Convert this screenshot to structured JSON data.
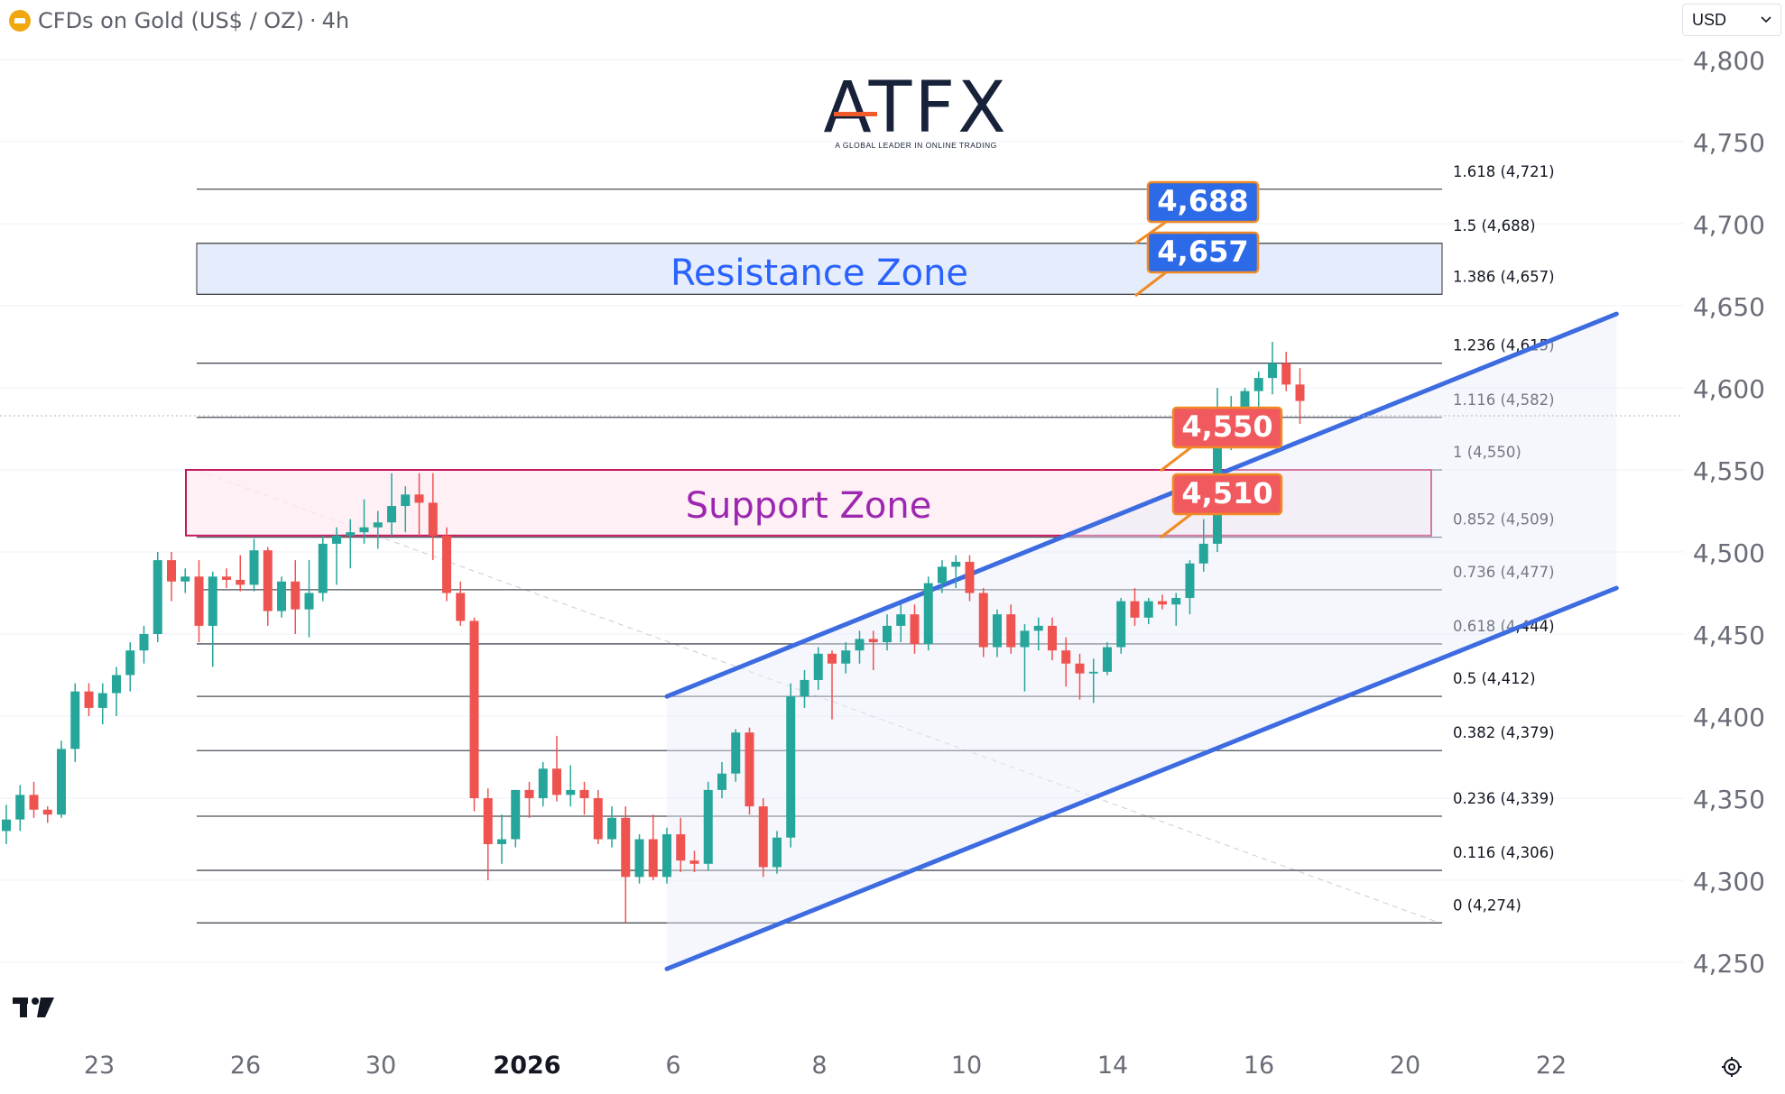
{
  "header": {
    "symbol": "CFDs on Gold (US$ / OZ)",
    "separator": "·",
    "interval": "4h"
  },
  "currency_select": {
    "value": "USD",
    "icon": "chevron-down-icon"
  },
  "logo": {
    "name": "ATFX",
    "tagline": "A GLOBAL LEADER IN ONLINE TRADING"
  },
  "colors": {
    "up": "#26a69a",
    "down": "#ef5350",
    "channel": "#3d6be0",
    "resistance": "#2962ff",
    "support": "#9c27b0",
    "tag_blue": "#2c6ae8",
    "tag_red": "#f05a5e",
    "tag_border": "#f08a24"
  },
  "chart_data": {
    "type": "candlestick",
    "y_axis": {
      "ticks": [
        4800,
        4750,
        4700,
        4650,
        4600,
        4550,
        4500,
        4450,
        4400,
        4350,
        4300,
        4250
      ],
      "ylim": [
        4230,
        4810
      ],
      "current_price_line": 4583
    },
    "x_axis": {
      "ticks": [
        "23",
        "26",
        "30",
        "2026",
        "6",
        "8",
        "10",
        "14",
        "16",
        "20",
        "22"
      ]
    },
    "candles": [
      [
        4330,
        4346,
        4322,
        4337
      ],
      [
        4337,
        4358,
        4330,
        4352
      ],
      [
        4352,
        4360,
        4338,
        4343
      ],
      [
        4343,
        4345,
        4335,
        4340
      ],
      [
        4340,
        4385,
        4338,
        4380
      ],
      [
        4380,
        4420,
        4372,
        4415
      ],
      [
        4415,
        4420,
        4400,
        4405
      ],
      [
        4405,
        4420,
        4395,
        4414
      ],
      [
        4414,
        4430,
        4400,
        4425
      ],
      [
        4425,
        4445,
        4415,
        4440
      ],
      [
        4440,
        4455,
        4432,
        4450
      ],
      [
        4450,
        4500,
        4445,
        4495
      ],
      [
        4495,
        4500,
        4470,
        4482
      ],
      [
        4482,
        4490,
        4475,
        4485
      ],
      [
        4485,
        4495,
        4445,
        4455
      ],
      [
        4455,
        4488,
        4430,
        4485
      ],
      [
        4485,
        4490,
        4478,
        4483
      ],
      [
        4483,
        4498,
        4476,
        4480
      ],
      [
        4480,
        4508,
        4476,
        4501
      ],
      [
        4501,
        4503,
        4455,
        4464
      ],
      [
        4464,
        4485,
        4460,
        4482
      ],
      [
        4482,
        4495,
        4450,
        4465
      ],
      [
        4465,
        4495,
        4448,
        4475
      ],
      [
        4475,
        4510,
        4470,
        4505
      ],
      [
        4505,
        4515,
        4480,
        4510
      ],
      [
        4510,
        4520,
        4490,
        4512
      ],
      [
        4512,
        4532,
        4505,
        4515
      ],
      [
        4515,
        4525,
        4502,
        4518
      ],
      [
        4518,
        4548,
        4510,
        4528
      ],
      [
        4528,
        4540,
        4512,
        4535
      ],
      [
        4535,
        4548,
        4510,
        4530
      ],
      [
        4530,
        4548,
        4495,
        4510
      ],
      [
        4510,
        4515,
        4470,
        4475
      ],
      [
        4475,
        4482,
        4455,
        4458
      ],
      [
        4458,
        4460,
        4342,
        4350
      ],
      [
        4350,
        4356,
        4300,
        4322
      ],
      [
        4322,
        4340,
        4310,
        4325
      ],
      [
        4325,
        4355,
        4320,
        4355
      ],
      [
        4355,
        4360,
        4338,
        4350
      ],
      [
        4350,
        4372,
        4345,
        4368
      ],
      [
        4368,
        4388,
        4348,
        4352
      ],
      [
        4352,
        4370,
        4345,
        4355
      ],
      [
        4355,
        4360,
        4340,
        4350
      ],
      [
        4350,
        4355,
        4322,
        4325
      ],
      [
        4325,
        4345,
        4320,
        4338
      ],
      [
        4338,
        4345,
        4274,
        4302
      ],
      [
        4302,
        4328,
        4298,
        4325
      ],
      [
        4325,
        4340,
        4300,
        4302
      ],
      [
        4302,
        4332,
        4298,
        4328
      ],
      [
        4328,
        4338,
        4305,
        4312
      ],
      [
        4312,
        4318,
        4305,
        4310
      ],
      [
        4310,
        4360,
        4306,
        4355
      ],
      [
        4355,
        4372,
        4350,
        4365
      ],
      [
        4365,
        4392,
        4360,
        4390
      ],
      [
        4390,
        4393,
        4340,
        4345
      ],
      [
        4345,
        4350,
        4302,
        4308
      ],
      [
        4308,
        4330,
        4304,
        4326
      ],
      [
        4326,
        4420,
        4320,
        4412
      ],
      [
        4412,
        4428,
        4405,
        4422
      ],
      [
        4422,
        4442,
        4416,
        4438
      ],
      [
        4438,
        4440,
        4398,
        4432
      ],
      [
        4432,
        4445,
        4426,
        4440
      ],
      [
        4440,
        4452,
        4432,
        4447
      ],
      [
        4447,
        4452,
        4428,
        4445
      ],
      [
        4445,
        4462,
        4440,
        4455
      ],
      [
        4455,
        4468,
        4445,
        4462
      ],
      [
        4462,
        4468,
        4438,
        4444
      ],
      [
        4444,
        4485,
        4440,
        4481
      ],
      [
        4481,
        4495,
        4475,
        4491
      ],
      [
        4491,
        4498,
        4478,
        4494
      ],
      [
        4494,
        4498,
        4470,
        4475
      ],
      [
        4475,
        4478,
        4436,
        4442
      ],
      [
        4442,
        4465,
        4436,
        4462
      ],
      [
        4462,
        4468,
        4438,
        4442
      ],
      [
        4442,
        4456,
        4415,
        4452
      ],
      [
        4452,
        4460,
        4440,
        4455
      ],
      [
        4455,
        4460,
        4434,
        4440
      ],
      [
        4440,
        4448,
        4418,
        4432
      ],
      [
        4432,
        4438,
        4410,
        4426
      ],
      [
        4426,
        4435,
        4408,
        4427
      ],
      [
        4427,
        4445,
        4425,
        4442
      ],
      [
        4442,
        4472,
        4438,
        4470
      ],
      [
        4470,
        4478,
        4455,
        4460
      ],
      [
        4460,
        4472,
        4456,
        4470
      ],
      [
        4470,
        4474,
        4465,
        4468
      ],
      [
        4468,
        4475,
        4455,
        4472
      ],
      [
        4472,
        4495,
        4462,
        4493
      ],
      [
        4493,
        4520,
        4488,
        4505
      ],
      [
        4505,
        4600,
        4500,
        4580
      ],
      [
        4580,
        4595,
        4562,
        4583
      ],
      [
        4583,
        4600,
        4576,
        4598
      ],
      [
        4598,
        4610,
        4588,
        4606
      ],
      [
        4606,
        4628,
        4596,
        4615
      ],
      [
        4615,
        4622,
        4598,
        4602
      ],
      [
        4602,
        4612,
        4578,
        4592
      ]
    ],
    "fib_levels": [
      {
        "ratio": "1.618",
        "price": 4721,
        "label": "1.618 (4,721)"
      },
      {
        "ratio": "1.5",
        "price": 4688,
        "label": "1.5 (4,688)"
      },
      {
        "ratio": "1.386",
        "price": 4657,
        "label": "1.386 (4,657)"
      },
      {
        "ratio": "1.236",
        "price": 4615,
        "label": "1.236 (4,615)"
      },
      {
        "ratio": "1.116",
        "price": 4582,
        "label": "1.116 (4,582)"
      },
      {
        "ratio": "1",
        "price": 4550,
        "label": "1 (4,550)"
      },
      {
        "ratio": "0.852",
        "price": 4509,
        "label": "0.852 (4,509)"
      },
      {
        "ratio": "0.736",
        "price": 4477,
        "label": "0.736 (4,477)"
      },
      {
        "ratio": "0.618",
        "price": 4444,
        "label": "0.618 (4,444)"
      },
      {
        "ratio": "0.5",
        "price": 4412,
        "label": "0.5 (4,412)"
      },
      {
        "ratio": "0.382",
        "price": 4379,
        "label": "0.382 (4,379)"
      },
      {
        "ratio": "0.236",
        "price": 4339,
        "label": "0.236 (4,339)"
      },
      {
        "ratio": "0.116",
        "price": 4306,
        "label": "0.116 (4,306)"
      },
      {
        "ratio": "0",
        "price": 4274,
        "label": "0 (4,274)"
      }
    ],
    "zones": [
      {
        "name": "Resistance Zone",
        "low": 4657,
        "high": 4688
      },
      {
        "name": "Support Zone",
        "low": 4510,
        "high": 4550
      }
    ],
    "channel": {
      "upper": [
        [
          48,
          4412
        ],
        [
          117,
          4645
        ]
      ],
      "lower": [
        [
          48,
          4246
        ],
        [
          117,
          4478
        ]
      ]
    },
    "price_tags": [
      {
        "text": "4,688",
        "price": 4688,
        "style": "blue"
      },
      {
        "text": "4,657",
        "price": 4657,
        "style": "blue"
      },
      {
        "text": "4,550",
        "price": 4550,
        "style": "red"
      },
      {
        "text": "4,510",
        "price": 4510,
        "style": "red"
      }
    ]
  }
}
